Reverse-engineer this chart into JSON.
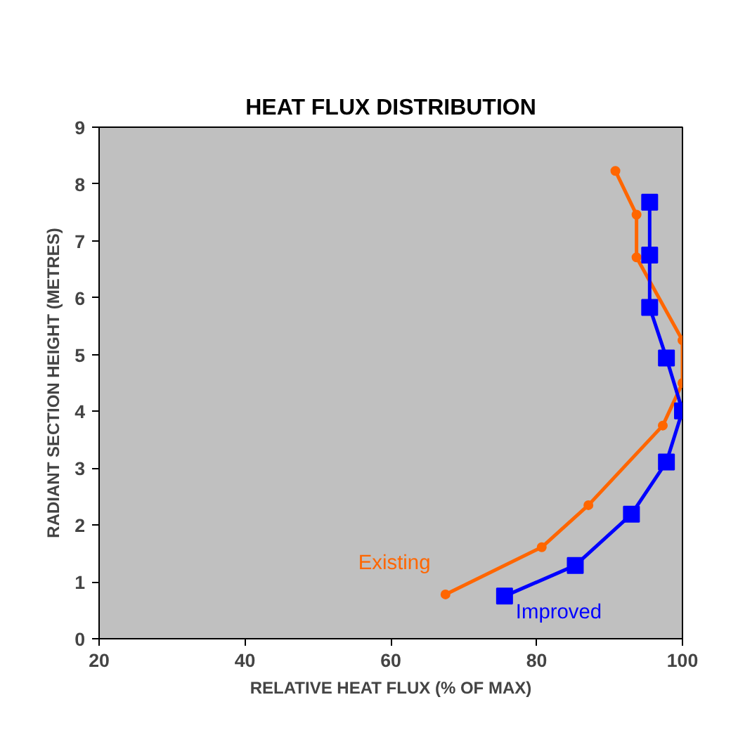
{
  "chart_data": {
    "type": "line",
    "title": "HEAT FLUX DISTRIBUTION",
    "xlabel": "RELATIVE HEAT FLUX (% OF MAX)",
    "ylabel": "RADIANT SECTION HEIGHT (METRES)",
    "xlim": [
      20,
      100
    ],
    "xticks": [
      20,
      40,
      60,
      80,
      100
    ],
    "ylim": [
      0,
      9
    ],
    "yticks": [
      0,
      1,
      2,
      3,
      4,
      5,
      6,
      7,
      8,
      9
    ],
    "grid": false,
    "series": [
      {
        "name": "Existing",
        "color": "#ff6600",
        "marker": "circle",
        "x": [
          67.5,
          80.7,
          87.1,
          97.3,
          100,
          100,
          93.7,
          93.7,
          90.8
        ],
        "values": [
          0.78,
          1.61,
          2.35,
          3.75,
          4.5,
          5.25,
          6.71,
          7.46,
          8.23
        ]
      },
      {
        "name": "Improved",
        "color": "#0000ff",
        "marker": "square",
        "x": [
          75.6,
          85.3,
          93.0,
          97.8,
          100,
          97.8,
          95.5,
          95.5,
          95.5
        ],
        "values": [
          0.75,
          1.29,
          2.19,
          3.11,
          4.01,
          4.94,
          5.83,
          6.75,
          7.68
        ]
      }
    ]
  }
}
